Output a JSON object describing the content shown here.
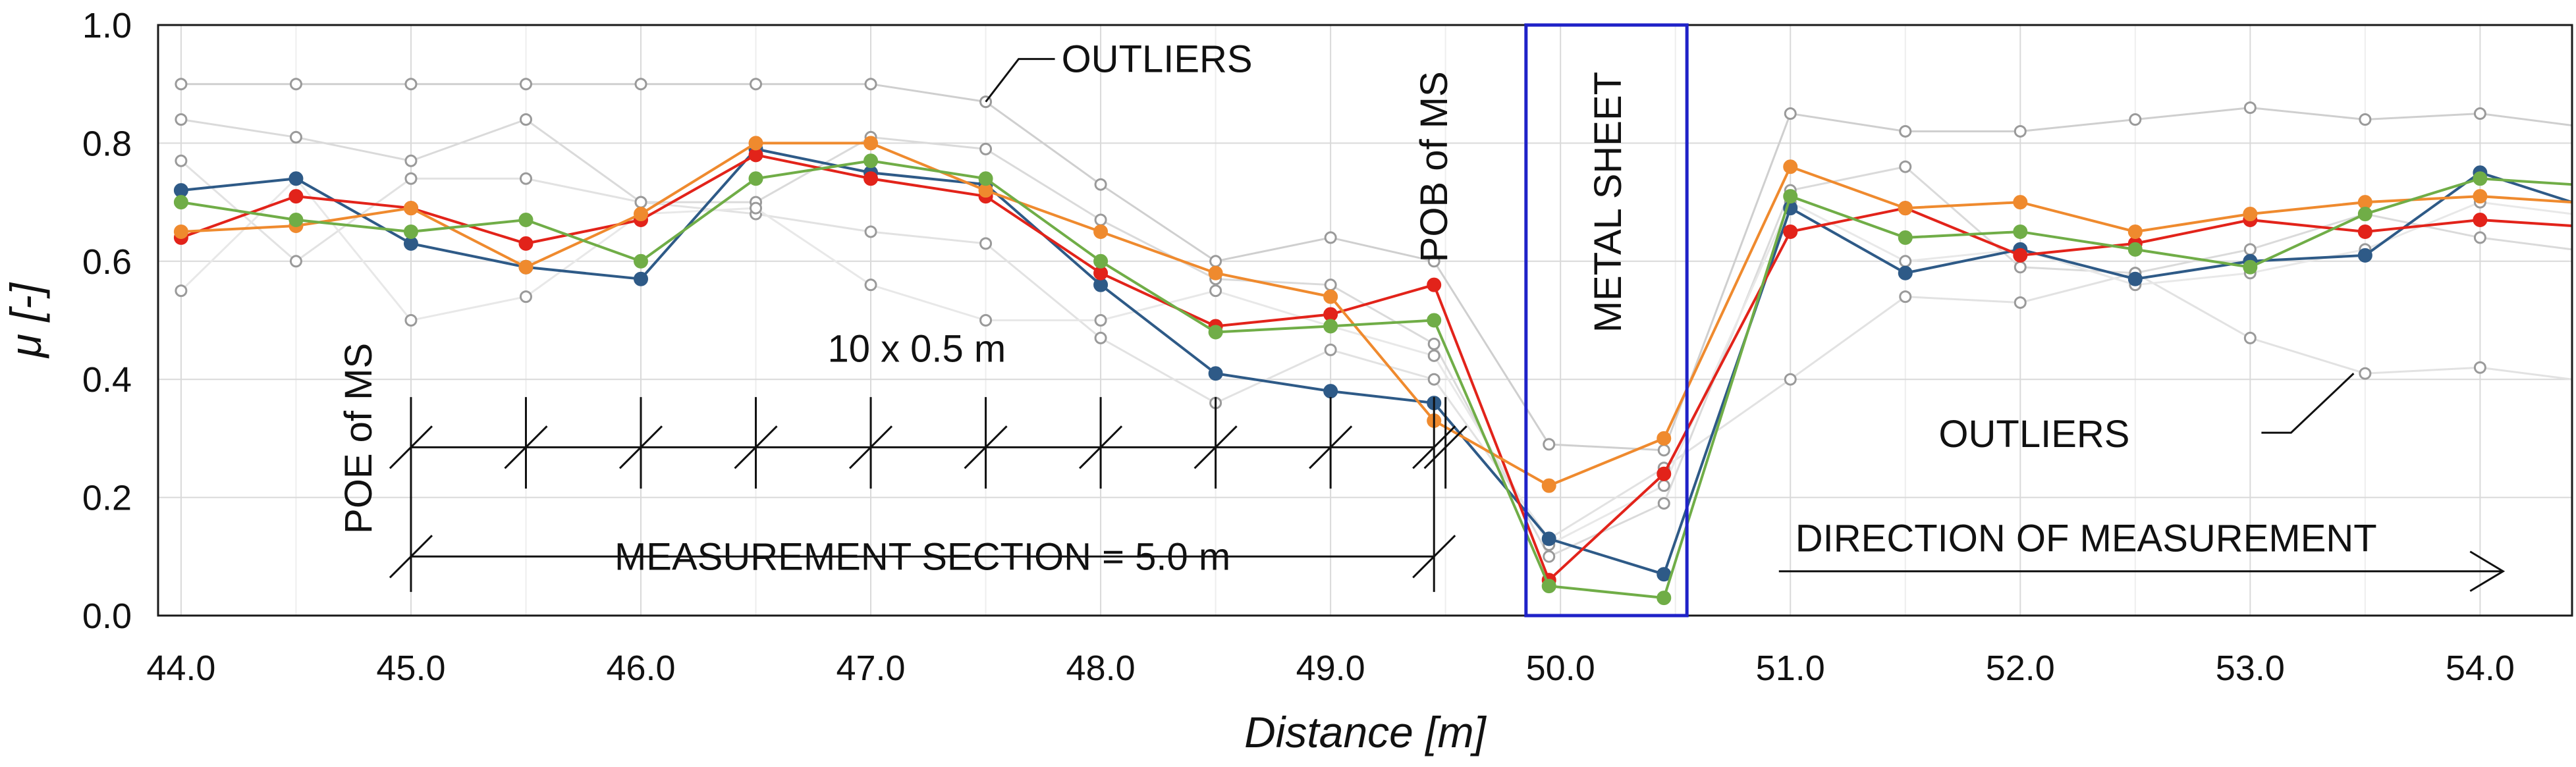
{
  "chart_data": {
    "type": "line",
    "xlabel": "Distance [m]",
    "ylabel": "μ [-]",
    "xlim": [
      43.9,
      54.4
    ],
    "ylim": [
      0.0,
      1.0
    ],
    "x_ticks": [
      "44.0",
      "45.0",
      "46.0",
      "47.0",
      "48.0",
      "49.0",
      "50.0",
      "51.0",
      "52.0",
      "53.0",
      "54.0"
    ],
    "y_ticks": [
      "0.0",
      "0.2",
      "0.4",
      "0.6",
      "0.8",
      "1.0"
    ],
    "grid": true,
    "x": [
      44.0,
      44.5,
      45.0,
      45.5,
      46.0,
      46.5,
      47.0,
      47.5,
      48.0,
      48.5,
      49.0,
      49.45,
      49.95,
      50.45,
      51.0,
      51.5,
      52.0,
      52.5,
      53.0,
      53.5,
      54.0,
      54.4
    ],
    "series": [
      {
        "color": "#2e5a87",
        "values": [
          0.72,
          0.74,
          0.63,
          0.59,
          0.57,
          0.79,
          0.75,
          0.73,
          0.56,
          0.41,
          0.38,
          0.36,
          0.13,
          0.07,
          0.69,
          0.58,
          0.62,
          0.57,
          0.6,
          0.61,
          0.75,
          0.7
        ]
      },
      {
        "color": "#e2231a",
        "values": [
          0.64,
          0.71,
          0.69,
          0.63,
          0.67,
          0.78,
          0.74,
          0.71,
          0.58,
          0.49,
          0.51,
          0.56,
          0.06,
          0.24,
          0.65,
          0.69,
          0.61,
          0.63,
          0.67,
          0.65,
          0.67,
          0.66
        ]
      },
      {
        "color": "#ef8a2e",
        "values": [
          0.65,
          0.66,
          0.69,
          0.59,
          0.68,
          0.8,
          0.8,
          0.72,
          0.65,
          0.58,
          0.54,
          0.33,
          0.22,
          0.3,
          0.76,
          0.69,
          0.7,
          0.65,
          0.68,
          0.7,
          0.71,
          0.7
        ]
      },
      {
        "color": "#70ad47",
        "values": [
          0.7,
          0.67,
          0.65,
          0.67,
          0.6,
          0.74,
          0.77,
          0.74,
          0.6,
          0.48,
          0.49,
          0.5,
          0.05,
          0.03,
          0.71,
          0.64,
          0.65,
          0.62,
          0.59,
          0.68,
          0.74,
          0.73
        ]
      }
    ],
    "outlier_series": [
      {
        "color": "#cfcfcf",
        "values": [
          0.9,
          0.9,
          0.9,
          0.9,
          0.9,
          0.9,
          0.9,
          0.87,
          0.73,
          0.6,
          0.64,
          0.6,
          0.29,
          0.28,
          0.85,
          0.82,
          0.82,
          0.84,
          0.86,
          0.84,
          0.85,
          0.83
        ]
      },
      {
        "color": "#dadada",
        "values": [
          0.84,
          0.81,
          0.77,
          0.84,
          0.7,
          0.7,
          0.81,
          0.79,
          0.67,
          0.57,
          0.56,
          0.46,
          0.1,
          0.19,
          0.72,
          0.76,
          0.59,
          0.58,
          0.62,
          0.68,
          0.64,
          0.62
        ]
      },
      {
        "color": "#e2e2e2",
        "values": [
          0.77,
          0.6,
          0.74,
          0.74,
          0.7,
          0.68,
          0.65,
          0.63,
          0.47,
          0.36,
          0.45,
          0.4,
          0.13,
          0.25,
          0.4,
          0.54,
          0.53,
          0.58,
          0.47,
          0.41,
          0.42,
          0.4
        ]
      },
      {
        "color": "#e8e8e8",
        "values": [
          0.55,
          0.74,
          0.5,
          0.54,
          0.68,
          0.69,
          0.56,
          0.5,
          0.5,
          0.55,
          0.49,
          0.44,
          0.12,
          0.22,
          0.7,
          0.6,
          0.62,
          0.56,
          0.58,
          0.62,
          0.7,
          0.68
        ]
      }
    ],
    "annotations": {
      "outliers_top": "OUTLIERS",
      "outliers_right": "OUTLIERS",
      "pob": "POB of MS",
      "poe": "POE of MS",
      "metal_sheet": "METAL SHEET",
      "step": "10 x 0.5 m",
      "section": "MEASUREMENT SECTION = 5.0 m",
      "direction": "DIRECTION OF MEASUREMENT"
    },
    "metal_sheet_range": [
      49.85,
      50.55
    ],
    "measurement_section": [
      45.0,
      49.45
    ],
    "highlight_color": "#1f22c8"
  }
}
